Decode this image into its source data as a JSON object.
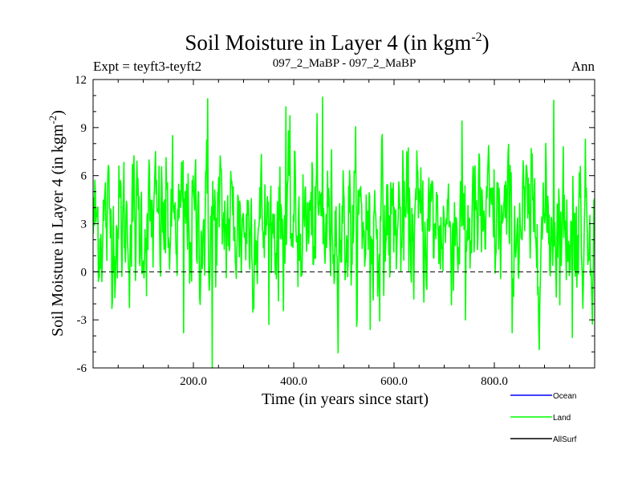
{
  "chart_data": {
    "type": "line",
    "title": "Soil Moisture in Layer 4 (in kgm",
    "title_sup": "-2",
    "title_close": ")",
    "subtitle_left": "Expt = teyft3-teyft2",
    "subtitle_center": "097_2_MaBP - 097_2_MaBP",
    "subtitle_right": "Ann",
    "xlabel": "Time (in years since start)",
    "ylabel": "Soil Moisture in Layer 4 (in kgm",
    "ylabel_sup": "-2",
    "ylabel_close": ")",
    "xlim": [
      0,
      1000
    ],
    "ylim": [
      -6,
      12
    ],
    "xticks": [
      200,
      400,
      600,
      800
    ],
    "xtick_labels": [
      "200.0",
      "400.0",
      "600.0",
      "800.0"
    ],
    "yticks": [
      -6,
      -3,
      0,
      3,
      6,
      9,
      12
    ],
    "ytick_labels": [
      "-6",
      "-3",
      "0",
      "3",
      "6",
      "9",
      "12"
    ],
    "zero_line": "dashed",
    "legend_position": "bottom-right",
    "series": [
      {
        "name": "Ocean",
        "color": "#0000ff",
        "values": []
      },
      {
        "name": "Land",
        "color": "#00ff00",
        "n_points": 1000,
        "mean": 3.0,
        "std": 2.2,
        "extremes": [
          {
            "x": 180,
            "y": -3.8
          },
          {
            "x": 228,
            "y": 10.8
          },
          {
            "x": 237,
            "y": -6.0
          },
          {
            "x": 384,
            "y": 10.3
          },
          {
            "x": 457,
            "y": 10.9
          },
          {
            "x": 552,
            "y": -3.6
          },
          {
            "x": 742,
            "y": -3.0
          },
          {
            "x": 835,
            "y": -3.8
          },
          {
            "x": 918,
            "y": 10.7
          },
          {
            "x": 955,
            "y": -4.1
          }
        ]
      },
      {
        "name": "AllSurf",
        "color": "#000000",
        "values": []
      }
    ]
  }
}
